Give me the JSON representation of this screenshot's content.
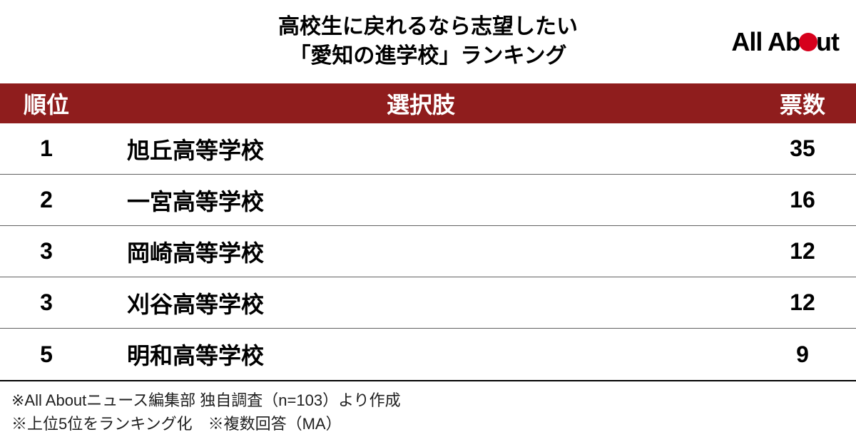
{
  "title": {
    "line1": "高校生に戻れるなら志望したい",
    "line2": "「愛知の進学校」ランキング",
    "fontsize": 30,
    "color": "#000000"
  },
  "logo": {
    "text_left": "All Ab",
    "text_right": "ut",
    "fontsize": 36,
    "dot_color": "#d6001c",
    "dot_size": 26
  },
  "table": {
    "header": {
      "rank": "順位",
      "choice": "選択肢",
      "votes": "票数",
      "background_color": "#8f1d1d",
      "text_color": "#ffffff",
      "fontsize": 32,
      "height": 58
    },
    "columns": {
      "rank_width": 130,
      "votes_width": 150
    },
    "rows": [
      {
        "rank": "1",
        "choice": "旭丘高等学校",
        "votes": "35"
      },
      {
        "rank": "2",
        "choice": "一宮高等学校",
        "votes": "16"
      },
      {
        "rank": "3",
        "choice": "岡崎高等学校",
        "votes": "12"
      },
      {
        "rank": "3",
        "choice": "刈谷高等学校",
        "votes": "12"
      },
      {
        "rank": "5",
        "choice": "明和高等学校",
        "votes": "9"
      }
    ],
    "row_style": {
      "fontsize": 32,
      "height": 72,
      "text_color": "#000000",
      "border_color": "#606060"
    }
  },
  "footnotes": {
    "line1": "※All Aboutニュース編集部 独自調査（n=103）より作成",
    "line2": "※上位5位をランキング化　※複数回答（MA）",
    "fontsize": 22,
    "color": "#202020",
    "border_color": "#000000"
  }
}
